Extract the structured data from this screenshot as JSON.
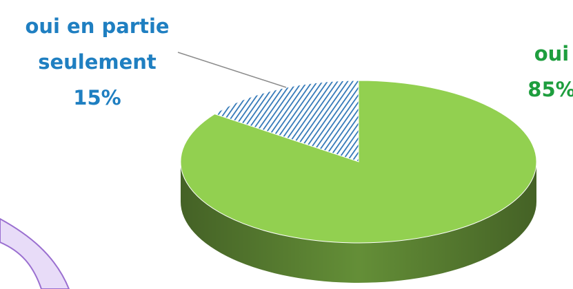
{
  "chart_data": {
    "type": "pie3d",
    "categories": [
      "oui en partie seulement",
      "oui"
    ],
    "values": [
      15,
      85
    ],
    "value_labels": [
      "15%",
      "85%"
    ],
    "colors": [
      "#2e75b6",
      "#92d050"
    ],
    "label_colors": [
      "#1f7fc1",
      "#1e9e3e"
    ]
  }
}
